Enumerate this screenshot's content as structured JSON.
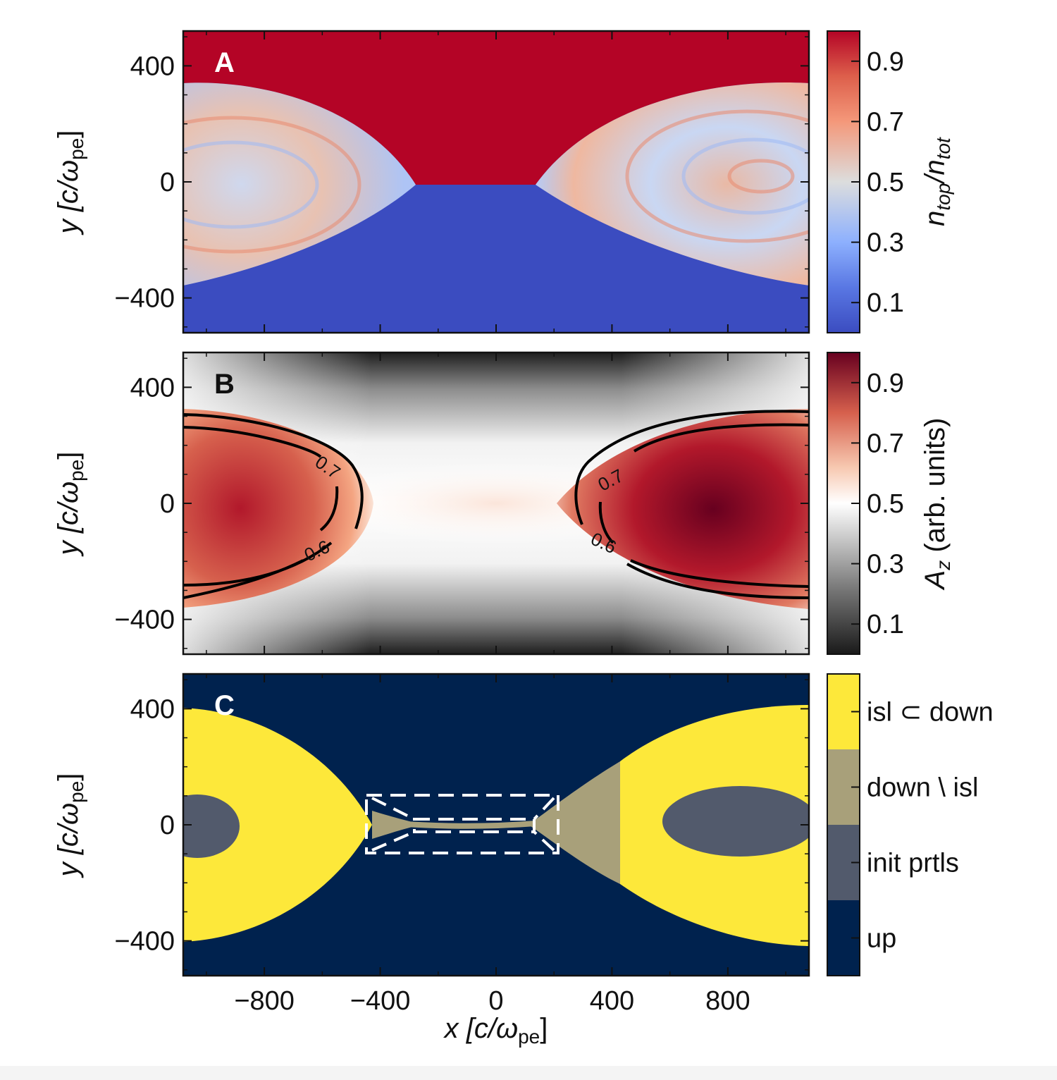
{
  "chart_data": [
    {
      "type": "heatmap",
      "panel": "A",
      "xlim": [
        -1080,
        1080
      ],
      "ylim": [
        -520,
        520
      ],
      "y_ticks": [
        -400,
        0,
        400
      ],
      "ylabel": {
        "main": "y [c/ω",
        "sub": "pe",
        "tail": "]"
      },
      "colorbar": {
        "label": {
          "a": "n",
          "a_sub": "top",
          "mid": "/n",
          "b_sub": "tot"
        },
        "range": [
          0,
          1
        ],
        "ticks": [
          "0.1",
          "0.3",
          "0.5",
          "0.7",
          "0.9"
        ],
        "colors": [
          "#3b4cc0",
          "#7396f5",
          "#b0cbfc",
          "#dcdddd",
          "#f6bfa6",
          "#ea7b60",
          "#b40426"
        ]
      },
      "regions": {
        "top_value": 0.97,
        "bottom_value": 0.03,
        "islands": "mixed 0.1–0.9"
      }
    },
    {
      "type": "heatmap",
      "panel": "B",
      "xlim": [
        -1080,
        1080
      ],
      "ylim": [
        -520,
        520
      ],
      "y_ticks": [
        -400,
        0,
        400
      ],
      "ylabel": {
        "main": "y [c/ω",
        "sub": "pe",
        "tail": "]"
      },
      "colorbar": {
        "label": {
          "a": "A",
          "a_sub": "z",
          "rest": " (arb. units)"
        },
        "range": [
          0,
          1
        ],
        "ticks": [
          "0.1",
          "0.3",
          "0.5",
          "0.7",
          "0.9"
        ],
        "colors": [
          "#1a1a1a",
          "#7a7a7a",
          "#d4d4d4",
          "#ffffff",
          "#f4c3aa",
          "#d6604d",
          "#67001f"
        ]
      },
      "contours": [
        {
          "level": 0.6,
          "label": "0.6"
        },
        {
          "level": 0.7,
          "label": "0.7"
        }
      ]
    },
    {
      "type": "heatmap",
      "panel": "C",
      "xlim": [
        -1080,
        1080
      ],
      "ylim": [
        -520,
        520
      ],
      "x_ticks": [
        -800,
        -400,
        0,
        400,
        800
      ],
      "y_ticks": [
        -400,
        0,
        400
      ],
      "xlabel": {
        "main": "x [c/ω",
        "sub": "pe",
        "tail": "]"
      },
      "ylabel": {
        "main": "y [c/ω",
        "sub": "pe",
        "tail": "]"
      },
      "categories": [
        {
          "label": "isl ⊂ down",
          "color": "#fde83a"
        },
        {
          "label": "down \\ isl",
          "color": "#a8a07a"
        },
        {
          "label": "init prtls",
          "color": "#525a6c"
        },
        {
          "label": "up",
          "color": "#00224e"
        }
      ],
      "dashed_boxes": [
        {
          "x": [
            -430,
            210
          ],
          "y": [
            -100,
            100
          ]
        },
        {
          "x": [
            -430,
            210
          ],
          "y": [
            -25,
            25
          ]
        }
      ]
    }
  ],
  "panel_labels": [
    "A",
    "B",
    "C"
  ],
  "colors": {
    "red": "#b40426",
    "blue": "#3b4cc0",
    "navy": "#00224e",
    "yellow": "#fde83a",
    "khaki": "#a8a07a",
    "slate": "#525a6c"
  }
}
